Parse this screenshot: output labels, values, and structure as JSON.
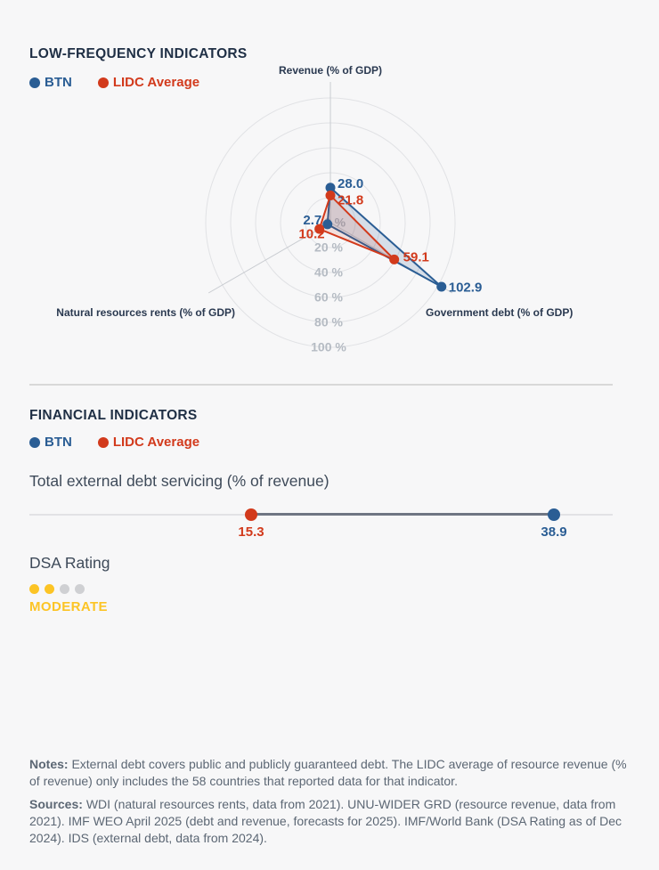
{
  "page": {
    "background": "#f7f7f8"
  },
  "sections": {
    "low_frequency": {
      "title": "LOW-FREQUENCY INDICATORS"
    },
    "financial": {
      "title": "FINANCIAL INDICATORS"
    }
  },
  "chart_data": [
    {
      "type": "radar",
      "title": "LOW-FREQUENCY INDICATORS",
      "axes": [
        "Revenue (% of GDP)",
        "Government debt (% of GDP)",
        "Natural resources rents (% of GDP)"
      ],
      "ring_ticks": [
        "0 %",
        "20 %",
        "40 %",
        "60 %",
        "80 %",
        "100 %"
      ],
      "ring_values": [
        0,
        20,
        40,
        60,
        80,
        100
      ],
      "series": [
        {
          "name": "BTN",
          "color": "#2a5d94",
          "values": [
            28.0,
            102.9,
            2.7
          ]
        },
        {
          "name": "LIDC Average",
          "color": "#d23a1c",
          "values": [
            21.8,
            59.1,
            10.2
          ]
        }
      ],
      "legend_position": "top-left",
      "grid": "circular"
    },
    {
      "type": "dotplot",
      "title": "Total external debt servicing (% of revenue)",
      "series": [
        {
          "name": "BTN",
          "color": "#2a5d94",
          "value": 38.9
        },
        {
          "name": "LIDC Average",
          "color": "#d23a1c",
          "value": 15.3
        }
      ],
      "track_color": "#e2e2e5",
      "segment_color": "#6f7683"
    },
    {
      "type": "rating",
      "title": "DSA Rating",
      "value": "MODERATE",
      "dots_filled": 2,
      "dots_total": 4,
      "fill_color": "#fcc425",
      "empty_color": "#cfd0d3"
    }
  ],
  "notes": {
    "label": "Notes:",
    "text": "External debt covers public and publicly guaranteed debt. The LIDC average of resource revenue (% of revenue) only includes the 58 countries that reported data for that indicator."
  },
  "sources": {
    "label": "Sources:",
    "text": "WDI (natural resources rents, data from 2021). UNU-WIDER GRD (resource revenue, data from 2021). IMF WEO April 2025 (debt and revenue, forecasts for 2025). IMF/World Bank (DSA Rating as of Dec 2024). IDS (external debt, data from 2024)."
  }
}
